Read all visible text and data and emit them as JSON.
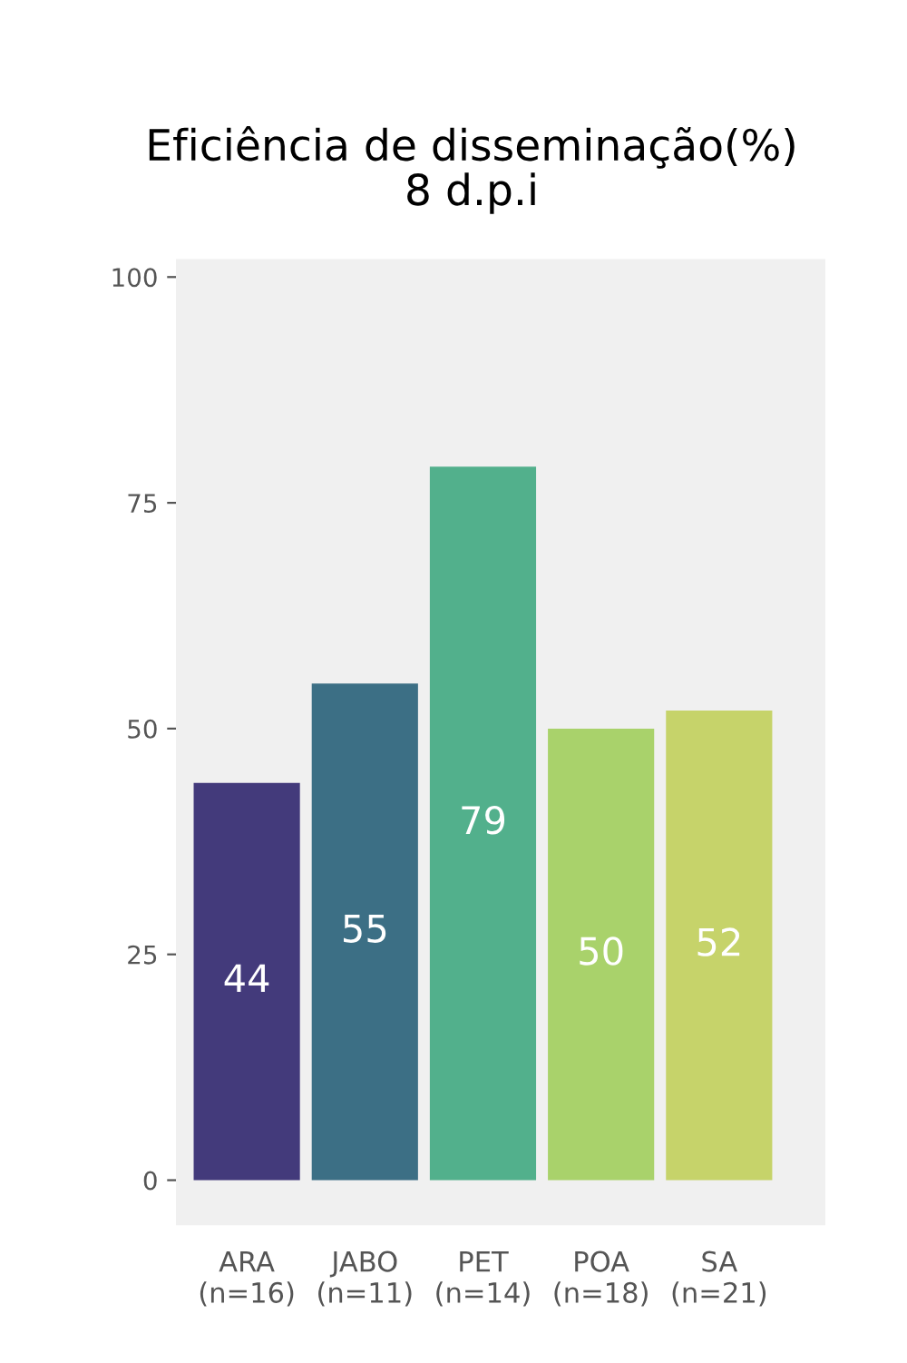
{
  "chart_data": {
    "type": "bar",
    "title": "Eficiência de disseminação(%)\n8 d.p.i",
    "categories": [
      "ARA\n(n=16)",
      "JABO\n(n=11)",
      "PET\n(n=14)",
      "POA\n(n=18)",
      "SA\n(n=21)"
    ],
    "values": [
      44,
      55,
      79,
      50,
      52
    ],
    "colors": [
      "#433a7b",
      "#3c6f85",
      "#52b08c",
      "#a9d26b",
      "#c6d36a"
    ],
    "ylim": [
      -5,
      102
    ],
    "yticks": [
      0,
      25,
      50,
      75,
      100
    ],
    "grid": false,
    "data_labels": true
  }
}
